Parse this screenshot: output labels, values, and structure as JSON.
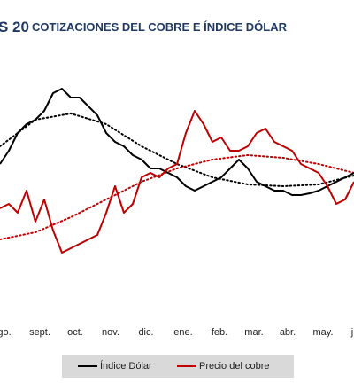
{
  "chart_data": {
    "type": "line",
    "title_prefix": "S 20",
    "title": "COTIZACIONES DEL COBRE E ÍNDICE DÓLAR",
    "xlim": [
      0,
      400
    ],
    "ylim": [
      0,
      210
    ],
    "xticks": [
      {
        "value": 5,
        "label": "go."
      },
      {
        "value": 45,
        "label": "sept."
      },
      {
        "value": 85,
        "label": "oct."
      },
      {
        "value": 125,
        "label": "nov."
      },
      {
        "value": 165,
        "label": "dic."
      },
      {
        "value": 207,
        "label": "ene."
      },
      {
        "value": 248,
        "label": "feb."
      },
      {
        "value": 287,
        "label": "mar."
      },
      {
        "value": 325,
        "label": "abr."
      },
      {
        "value": 365,
        "label": "may."
      },
      {
        "value": 398,
        "label": "j"
      }
    ],
    "x": [
      0,
      10,
      20,
      30,
      40,
      50,
      60,
      70,
      80,
      90,
      100,
      110,
      120,
      130,
      140,
      150,
      160,
      170,
      180,
      190,
      200,
      210,
      220,
      230,
      240,
      250,
      260,
      270,
      280,
      290,
      300,
      310,
      320,
      330,
      340,
      350,
      360,
      370,
      380,
      390,
      400
    ],
    "trend_x": [
      0,
      40,
      80,
      120,
      160,
      200,
      240,
      280,
      320,
      360,
      400
    ],
    "legend": "bottom",
    "series": [
      {
        "name": "Índice Dólar",
        "color": "#000000",
        "values": [
          115,
          130,
          150,
          160,
          165,
          175,
          195,
          200,
          190,
          190,
          180,
          170,
          150,
          140,
          135,
          125,
          120,
          110,
          110,
          105,
          100,
          90,
          85,
          90,
          95,
          100,
          110,
          120,
          110,
          95,
          90,
          85,
          85,
          80,
          80,
          82,
          85,
          90,
          95,
          100,
          105
        ],
        "trend_values": [
          135,
          165,
          172,
          160,
          135,
          115,
          100,
          92,
          90,
          92,
          102
        ]
      },
      {
        "name": "Precio del cobre",
        "color": "#c00000",
        "values": [
          65,
          70,
          60,
          85,
          50,
          75,
          40,
          15,
          20,
          25,
          30,
          35,
          60,
          90,
          60,
          70,
          100,
          105,
          100,
          110,
          115,
          150,
          175,
          160,
          140,
          145,
          130,
          130,
          135,
          150,
          155,
          140,
          135,
          130,
          115,
          110,
          105,
          90,
          70,
          75,
          95
        ],
        "trend_values": [
          30,
          38,
          55,
          75,
          95,
          110,
          120,
          125,
          122,
          115,
          105
        ]
      }
    ]
  }
}
